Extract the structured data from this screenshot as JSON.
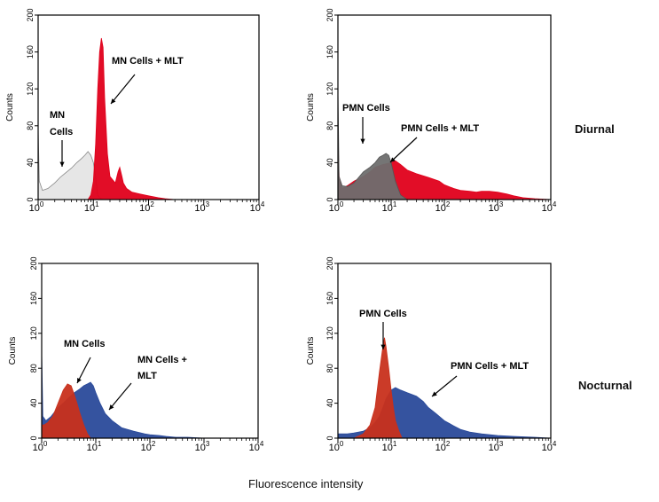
{
  "figure": {
    "row_labels": [
      "Diurnal",
      "Nocturnal"
    ],
    "xaxis_label": "Fluorescence intensity"
  },
  "colors": {
    "control_gray": "#e6e6e6",
    "control_dark_gray": "#6e6e6e",
    "mlt_red": "#e0001b",
    "nocturnal_blue": "#2a4a9a",
    "nocturnal_red": "#c8301c",
    "axis": "#000000"
  },
  "chart_data": [
    {
      "type": "area",
      "panel": "diurnal-mn",
      "ylabel": "Counts",
      "x_scale": "log",
      "xlim": [
        1,
        10000
      ],
      "ylim": [
        0,
        200
      ],
      "x_ticks": [
        "10^0",
        "10^1",
        "10^2",
        "10^3",
        "10^4"
      ],
      "y_ticks": [
        0,
        40,
        80,
        120,
        160,
        200
      ],
      "series": [
        {
          "role": "control",
          "x": [
            1,
            1.05,
            1.2,
            1.5,
            2,
            2.5,
            3,
            4,
            5,
            6,
            7,
            8,
            9,
            10,
            11,
            12,
            13,
            15,
            20
          ],
          "y": [
            80,
            20,
            10,
            12,
            18,
            24,
            28,
            34,
            40,
            44,
            48,
            52,
            48,
            40,
            25,
            5,
            2,
            0,
            0
          ]
        },
        {
          "role": "treated",
          "x": [
            8,
            9,
            10,
            11,
            12,
            13,
            14,
            15,
            16,
            18,
            20,
            25,
            28,
            30,
            33,
            35,
            40,
            50,
            70,
            100,
            150,
            200,
            300,
            500,
            1000
          ],
          "y": [
            0,
            5,
            20,
            60,
            120,
            160,
            175,
            165,
            110,
            50,
            25,
            18,
            30,
            35,
            25,
            18,
            12,
            8,
            6,
            4,
            2,
            1,
            0,
            0,
            0
          ]
        }
      ],
      "annotations": [
        {
          "text": "MN Cells + MLT"
        },
        {
          "text": "MN"
        },
        {
          "text": "Cells"
        }
      ]
    },
    {
      "type": "area",
      "panel": "diurnal-pmn",
      "ylabel": "Counts",
      "x_scale": "log",
      "xlim": [
        1,
        10000
      ],
      "ylim": [
        0,
        200
      ],
      "x_ticks": [
        "10^0",
        "10^1",
        "10^2",
        "10^3",
        "10^4"
      ],
      "y_ticks": [
        0,
        40,
        80,
        120,
        160,
        200
      ],
      "series": [
        {
          "role": "treated",
          "x": [
            1,
            1.05,
            1.2,
            1.5,
            2,
            3,
            4,
            5,
            7,
            10,
            12,
            15,
            20,
            30,
            50,
            80,
            100,
            150,
            200,
            300,
            400,
            500,
            700,
            1000,
            1500,
            2000,
            3000,
            5000,
            10000
          ],
          "y": [
            70,
            25,
            12,
            15,
            20,
            25,
            30,
            35,
            38,
            40,
            42,
            38,
            32,
            28,
            24,
            20,
            16,
            12,
            10,
            9,
            8,
            9,
            9,
            8,
            6,
            4,
            2,
            1,
            0
          ]
        },
        {
          "role": "control",
          "x": [
            1,
            1.05,
            1.2,
            1.5,
            2,
            3,
            4,
            5,
            6,
            7,
            8,
            9,
            10,
            12,
            15,
            20
          ],
          "y": [
            120,
            25,
            15,
            14,
            18,
            30,
            35,
            40,
            46,
            48,
            50,
            48,
            40,
            20,
            5,
            0
          ]
        }
      ],
      "annotations": [
        {
          "text": "PMN Cells"
        },
        {
          "text": "PMN Cells + MLT"
        }
      ]
    },
    {
      "type": "area",
      "panel": "nocturnal-mn",
      "ylabel": "Counts",
      "x_scale": "log",
      "xlim": [
        1,
        10000
      ],
      "ylim": [
        0,
        200
      ],
      "x_ticks": [
        "10^0",
        "10^1",
        "10^2",
        "10^3",
        "10^4"
      ],
      "y_ticks": [
        0,
        40,
        80,
        120,
        160,
        200
      ],
      "series": [
        {
          "role": "treated",
          "x": [
            1,
            1.05,
            1.2,
            1.5,
            2,
            2.5,
            3,
            4,
            5,
            6,
            7,
            8,
            9,
            10,
            12,
            15,
            20,
            30,
            50,
            80,
            100,
            150,
            200,
            300,
            500,
            1000,
            2000,
            5000,
            10000
          ],
          "y": [
            100,
            25,
            20,
            25,
            35,
            40,
            45,
            52,
            56,
            60,
            62,
            64,
            60,
            52,
            40,
            28,
            20,
            12,
            8,
            5,
            4,
            3,
            2,
            1,
            1,
            0,
            0,
            0,
            0
          ]
        },
        {
          "role": "control",
          "x": [
            1,
            1.1,
            1.3,
            1.6,
            2,
            2.5,
            3,
            3.5,
            4,
            4.5,
            5,
            6,
            7,
            8
          ],
          "y": [
            15,
            15,
            18,
            25,
            40,
            55,
            62,
            60,
            50,
            40,
            30,
            15,
            5,
            0
          ]
        }
      ],
      "annotations": [
        {
          "text": "MN Cells"
        },
        {
          "text": "MN Cells +"
        },
        {
          "text": "MLT"
        }
      ]
    },
    {
      "type": "area",
      "panel": "nocturnal-pmn",
      "ylabel": "Counts",
      "x_scale": "log",
      "xlim": [
        1,
        10000
      ],
      "ylim": [
        0,
        200
      ],
      "x_ticks": [
        "10^0",
        "10^1",
        "10^2",
        "10^3",
        "10^4"
      ],
      "y_ticks": [
        0,
        40,
        80,
        120,
        160,
        200
      ],
      "series": [
        {
          "role": "treated",
          "x": [
            1,
            1.5,
            2,
            3,
            4,
            5,
            6,
            7,
            8,
            10,
            12,
            15,
            20,
            30,
            40,
            50,
            70,
            100,
            150,
            200,
            300,
            500,
            1000,
            2000,
            5000,
            10000
          ],
          "y": [
            5,
            5,
            6,
            8,
            12,
            18,
            25,
            35,
            45,
            55,
            58,
            55,
            52,
            48,
            42,
            35,
            28,
            20,
            14,
            10,
            7,
            5,
            3,
            2,
            1,
            0
          ]
        },
        {
          "role": "control",
          "x": [
            2,
            3,
            4,
            5,
            6,
            7,
            7.5,
            8,
            9,
            10,
            11,
            12,
            14,
            16
          ],
          "y": [
            0,
            5,
            15,
            35,
            75,
            105,
            115,
            105,
            80,
            55,
            35,
            20,
            8,
            0
          ]
        }
      ],
      "annotations": [
        {
          "text": "PMN Cells"
        },
        {
          "text": "PMN Cells + MLT"
        }
      ]
    }
  ]
}
